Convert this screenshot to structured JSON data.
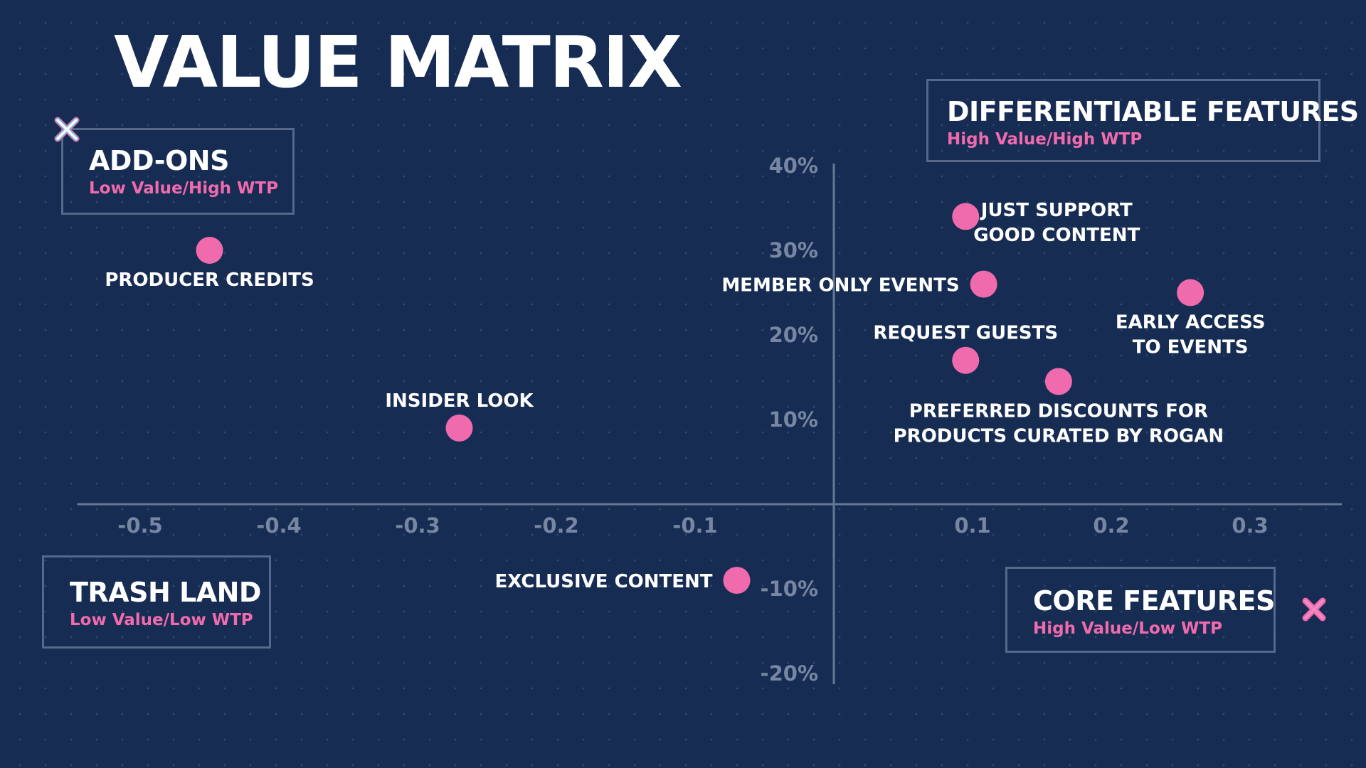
{
  "title": "VALUE MATRIX",
  "quadrants": {
    "top_left": {
      "title": "ADD-ONS",
      "subtitle": "Low Value/High WTP"
    },
    "top_right": {
      "title": "DIFFERENTIABLE FEATURES",
      "subtitle": "High Value/High WTP"
    },
    "bottom_left": {
      "title": "TRASH LAND",
      "subtitle": "Low Value/Low WTP"
    },
    "bottom_right": {
      "title": "CORE FEATURES",
      "subtitle": "High Value/Low WTP"
    }
  },
  "colors": {
    "background": "#172c52",
    "point": "#f06bae",
    "axis": "#667791",
    "tick": "#7787a3"
  },
  "decorations": [
    "close-icon-white",
    "close-icon-pink"
  ],
  "chart_data": {
    "type": "scatter",
    "title": "VALUE MATRIX",
    "xlabel": "",
    "ylabel": "",
    "xlim": [
      -0.53,
      0.32
    ],
    "ylim": [
      -0.2,
      0.4
    ],
    "x_ticks": [
      "-0.5",
      "-0.4",
      "-0.3",
      "-0.2",
      "-0.1",
      "0.1",
      "0.2",
      "0.3"
    ],
    "x_tick_values": [
      -0.5,
      -0.4,
      -0.3,
      -0.2,
      -0.1,
      0.1,
      0.2,
      0.3
    ],
    "y_ticks": [
      "40%",
      "30%",
      "20%",
      "10%",
      "-10%",
      "-20%"
    ],
    "y_tick_values": [
      0.4,
      0.3,
      0.2,
      0.1,
      -0.1,
      -0.2
    ],
    "grid": false,
    "points": [
      {
        "label": [
          "PRODUCER CREDITS"
        ],
        "x": -0.45,
        "y": 0.3,
        "label_pos": "below"
      },
      {
        "label": [
          "INSIDER LOOK"
        ],
        "x": -0.27,
        "y": 0.09,
        "label_pos": "above"
      },
      {
        "label": [
          "EXCLUSIVE CONTENT"
        ],
        "x": -0.07,
        "y": -0.09,
        "label_pos": "left"
      },
      {
        "label": [
          "JUST SUPPORT",
          "GOOD CONTENT"
        ],
        "x": 0.095,
        "y": 0.34,
        "label_pos": "right"
      },
      {
        "label": [
          "MEMBER ONLY EVENTS"
        ],
        "x": 0.108,
        "y": 0.26,
        "label_pos": "left"
      },
      {
        "label": [
          "REQUEST GUESTS"
        ],
        "x": 0.095,
        "y": 0.17,
        "label_pos": "above"
      },
      {
        "label": [
          "EARLY ACCESS",
          "TO EVENTS"
        ],
        "x": 0.257,
        "y": 0.25,
        "label_pos": "below"
      },
      {
        "label": [
          "PREFERRED DISCOUNTS FOR",
          "PRODUCTS CURATED BY ROGAN"
        ],
        "x": 0.162,
        "y": 0.145,
        "label_pos": "below"
      }
    ]
  }
}
